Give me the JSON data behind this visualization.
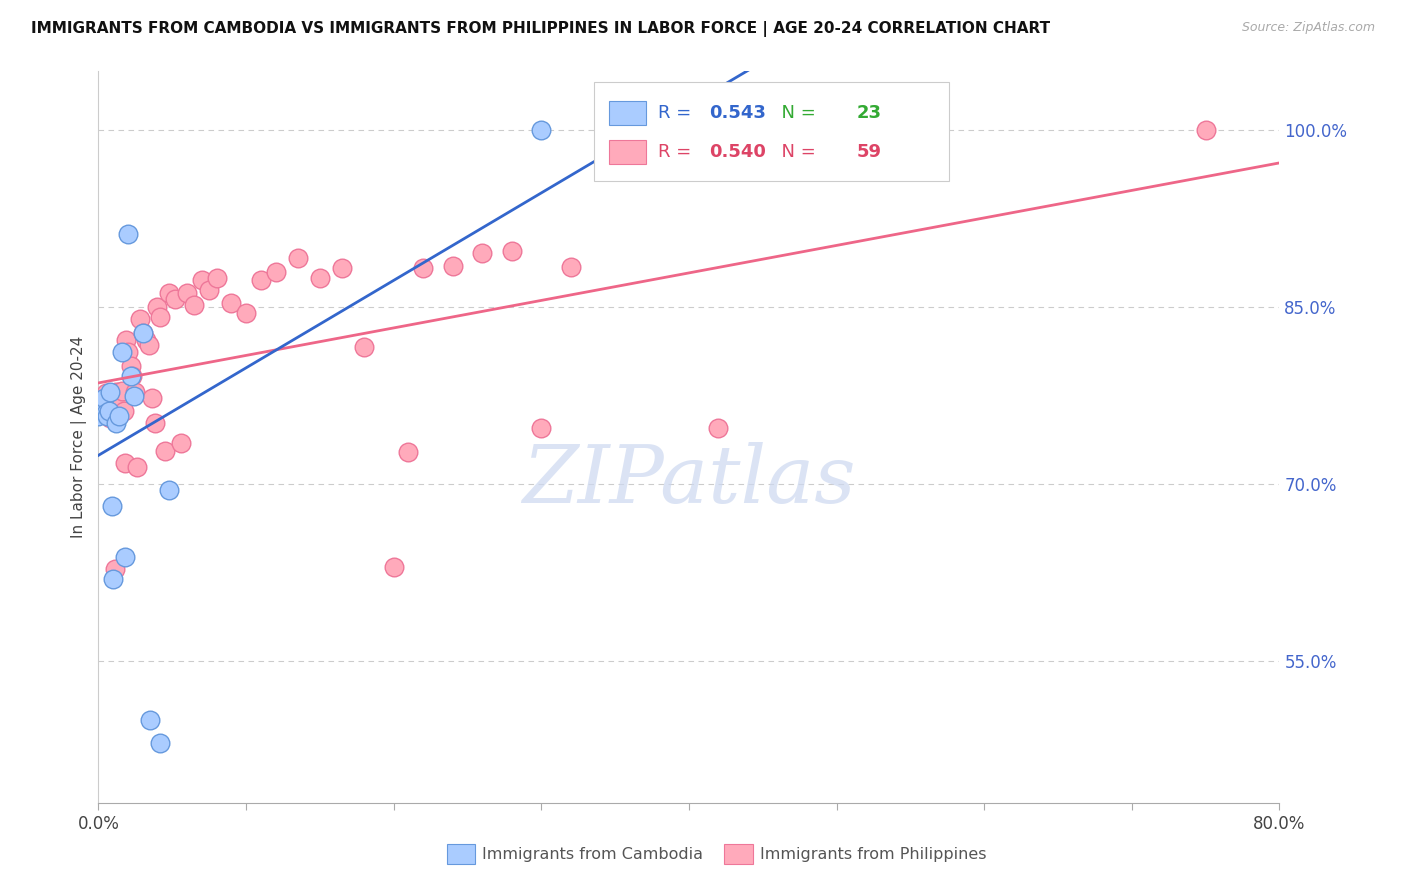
{
  "title": "IMMIGRANTS FROM CAMBODIA VS IMMIGRANTS FROM PHILIPPINES IN LABOR FORCE | AGE 20-24 CORRELATION CHART",
  "source": "Source: ZipAtlas.com",
  "ylabel": "In Labor Force | Age 20-24",
  "right_ytick_vals": [
    0.55,
    0.7,
    0.85,
    1.0
  ],
  "right_ytick_labels": [
    "55.0%",
    "70.0%",
    "85.0%",
    "100.0%"
  ],
  "xmin": 0.0,
  "xmax": 0.8,
  "ymin": 0.43,
  "ymax": 1.05,
  "legend_cambodia_R": "0.543",
  "legend_cambodia_N": "23",
  "legend_philippines_R": "0.540",
  "legend_philippines_N": "59",
  "color_cambodia_fill": "#aaccff",
  "color_cambodia_edge": "#6699dd",
  "color_cambodia_line": "#3366cc",
  "color_philippines_fill": "#ffaabb",
  "color_philippines_edge": "#ee7799",
  "color_philippines_line": "#ee6688",
  "color_right_axis": "#4466cc",
  "color_legend_R_blue": "#3366cc",
  "color_legend_N_green": "#33aa33",
  "color_legend_R_pink": "#dd4466",
  "color_legend_N_pink": "#dd4466",
  "scatter_cambodia_x": [
    0.0,
    0.0,
    0.002,
    0.003,
    0.004,
    0.005,
    0.006,
    0.007,
    0.008,
    0.009,
    0.01,
    0.012,
    0.014,
    0.016,
    0.018,
    0.02,
    0.022,
    0.024,
    0.03,
    0.035,
    0.042,
    0.048,
    0.3
  ],
  "scatter_cambodia_y": [
    0.758,
    0.768,
    0.763,
    0.77,
    0.773,
    0.76,
    0.758,
    0.762,
    0.778,
    0.682,
    0.62,
    0.752,
    0.758,
    0.812,
    0.638,
    0.912,
    0.792,
    0.775,
    0.828,
    0.5,
    0.481,
    0.695,
    1.0
  ],
  "scatter_philippines_x": [
    0.0,
    0.0,
    0.002,
    0.003,
    0.005,
    0.006,
    0.007,
    0.008,
    0.009,
    0.01,
    0.011,
    0.012,
    0.013,
    0.014,
    0.015,
    0.016,
    0.017,
    0.018,
    0.019,
    0.02,
    0.022,
    0.023,
    0.025,
    0.026,
    0.028,
    0.03,
    0.032,
    0.034,
    0.036,
    0.038,
    0.04,
    0.042,
    0.045,
    0.048,
    0.052,
    0.056,
    0.06,
    0.065,
    0.07,
    0.075,
    0.08,
    0.09,
    0.1,
    0.11,
    0.12,
    0.135,
    0.15,
    0.165,
    0.18,
    0.2,
    0.21,
    0.22,
    0.24,
    0.26,
    0.28,
    0.3,
    0.32,
    0.42,
    0.75
  ],
  "scatter_philippines_y": [
    0.763,
    0.77,
    0.772,
    0.768,
    0.777,
    0.765,
    0.76,
    0.756,
    0.775,
    0.762,
    0.628,
    0.778,
    0.772,
    0.778,
    0.77,
    0.779,
    0.762,
    0.718,
    0.822,
    0.812,
    0.8,
    0.792,
    0.778,
    0.715,
    0.84,
    0.828,
    0.822,
    0.818,
    0.773,
    0.752,
    0.85,
    0.842,
    0.728,
    0.862,
    0.857,
    0.735,
    0.862,
    0.852,
    0.873,
    0.865,
    0.875,
    0.854,
    0.845,
    0.873,
    0.88,
    0.892,
    0.875,
    0.883,
    0.816,
    0.63,
    0.727,
    0.883,
    0.885,
    0.896,
    0.898,
    0.748,
    0.884,
    0.748,
    1.0
  ],
  "watermark_text": "ZIPatlas",
  "watermark_color": "#ccd8f0",
  "grid_color": "#cccccc",
  "bg_color": "#ffffff"
}
